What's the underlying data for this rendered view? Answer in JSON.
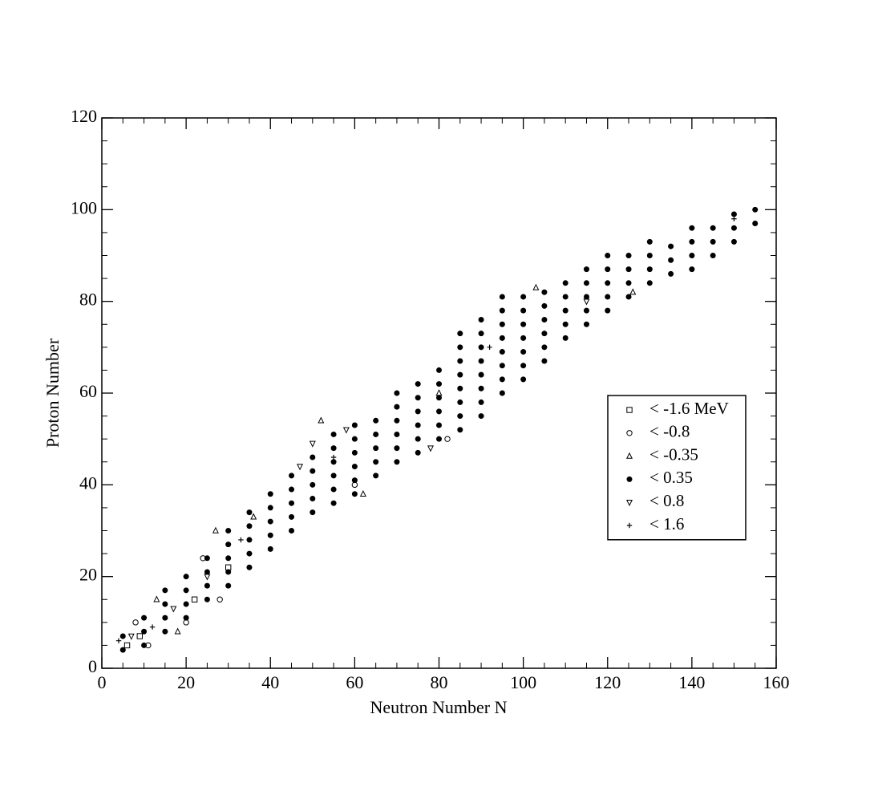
{
  "chart_data": {
    "type": "scatter",
    "x_label": "Neutron Number N",
    "y_label": "Proton Number",
    "xlim": [
      0,
      160
    ],
    "xticks": [
      0,
      20,
      40,
      60,
      80,
      100,
      120,
      140,
      160
    ],
    "ylim": [
      0,
      120
    ],
    "yticks": [
      0,
      20,
      40,
      60,
      80,
      100,
      120
    ],
    "legend": "right",
    "series": [
      {
        "name": "< -1.6 MeV",
        "marker": "square",
        "color": "#000000",
        "x": [
          6,
          9,
          22,
          30
        ],
        "y": [
          5,
          7,
          15,
          22
        ]
      },
      {
        "name": "< -0.8",
        "marker": "circle-open",
        "color": "#000000",
        "x": [
          8,
          11,
          20,
          24,
          28,
          60,
          82
        ],
        "y": [
          10,
          5,
          10,
          24,
          15,
          40,
          50
        ]
      },
      {
        "name": "< -0.35",
        "marker": "triangle",
        "color": "#000000",
        "x": [
          13,
          18,
          27,
          36,
          52,
          62,
          80,
          103,
          126
        ],
        "y": [
          15,
          8,
          30,
          33,
          54,
          38,
          60,
          83,
          82
        ]
      },
      {
        "name": "< 0.35",
        "marker": "circle",
        "color": "#000000",
        "x": [
          5,
          5,
          10,
          10,
          10,
          15,
          15,
          15,
          15,
          20,
          20,
          20,
          20,
          25,
          25,
          25,
          25,
          30,
          30,
          30,
          30,
          30,
          35,
          35,
          35,
          35,
          35,
          40,
          40,
          40,
          40,
          40,
          45,
          45,
          45,
          45,
          45,
          50,
          50,
          50,
          50,
          50,
          55,
          55,
          55,
          55,
          55,
          55,
          60,
          60,
          60,
          60,
          60,
          60,
          65,
          65,
          65,
          65,
          65,
          70,
          70,
          70,
          70,
          70,
          70,
          75,
          75,
          75,
          75,
          75,
          75,
          80,
          80,
          80,
          80,
          80,
          80,
          85,
          85,
          85,
          85,
          85,
          85,
          85,
          85,
          90,
          90,
          90,
          90,
          90,
          90,
          90,
          90,
          95,
          95,
          95,
          95,
          95,
          95,
          95,
          95,
          100,
          100,
          100,
          100,
          100,
          100,
          100,
          105,
          105,
          105,
          105,
          105,
          105,
          110,
          110,
          110,
          110,
          110,
          115,
          115,
          115,
          115,
          115,
          120,
          120,
          120,
          120,
          120,
          125,
          125,
          125,
          125,
          130,
          130,
          130,
          130,
          135,
          135,
          135,
          140,
          140,
          140,
          140,
          145,
          145,
          145,
          150,
          150,
          150,
          155,
          155
        ],
        "y": [
          4,
          7,
          5,
          8,
          11,
          8,
          11,
          14,
          17,
          11,
          14,
          17,
          20,
          15,
          18,
          21,
          24,
          18,
          21,
          24,
          27,
          30,
          22,
          25,
          28,
          31,
          34,
          26,
          29,
          32,
          35,
          38,
          30,
          33,
          36,
          39,
          42,
          34,
          37,
          40,
          43,
          46,
          36,
          39,
          42,
          45,
          48,
          51,
          38,
          41,
          44,
          47,
          50,
          53,
          42,
          45,
          48,
          51,
          54,
          45,
          48,
          51,
          54,
          57,
          60,
          47,
          50,
          53,
          56,
          59,
          62,
          50,
          53,
          56,
          59,
          62,
          65,
          52,
          55,
          58,
          61,
          64,
          67,
          70,
          73,
          55,
          58,
          61,
          64,
          67,
          70,
          73,
          76,
          60,
          63,
          66,
          69,
          72,
          75,
          78,
          81,
          63,
          66,
          69,
          72,
          75,
          78,
          81,
          67,
          70,
          73,
          76,
          79,
          82,
          72,
          75,
          78,
          81,
          84,
          75,
          78,
          81,
          84,
          87,
          78,
          81,
          84,
          87,
          90,
          81,
          84,
          87,
          90,
          84,
          87,
          90,
          93,
          86,
          89,
          92,
          87,
          90,
          93,
          96,
          90,
          93,
          96,
          93,
          96,
          99,
          97,
          100
        ]
      },
      {
        "name": "< 0.8",
        "marker": "triangle-down",
        "color": "#000000",
        "x": [
          7,
          17,
          25,
          47,
          50,
          58,
          78,
          115
        ],
        "y": [
          7,
          13,
          20,
          44,
          49,
          52,
          48,
          80
        ]
      },
      {
        "name": "< 1.6",
        "marker": "plus",
        "color": "#000000",
        "x": [
          4,
          12,
          33,
          55,
          92,
          125,
          150
        ],
        "y": [
          6,
          9,
          28,
          46,
          70,
          90,
          98
        ]
      }
    ]
  }
}
